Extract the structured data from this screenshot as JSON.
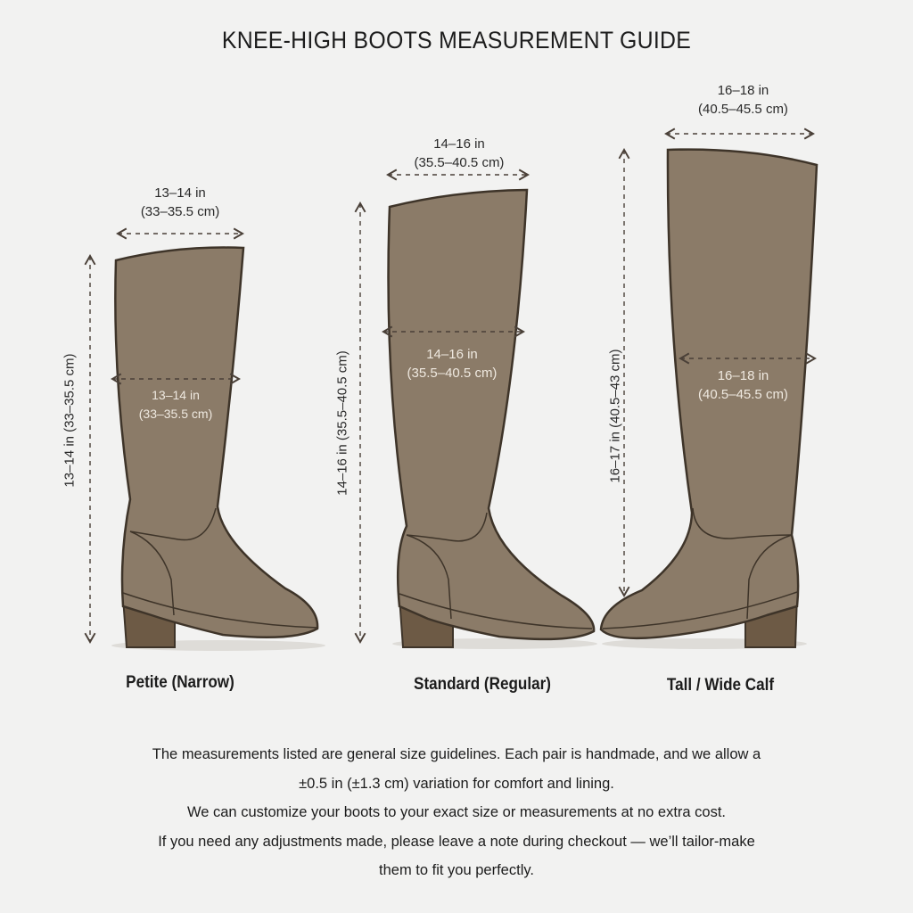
{
  "title": "KNEE-HIGH BOOTS MEASUREMENT GUIDE",
  "boots": [
    {
      "label": "Petite (Narrow)",
      "top_width": [
        "13–14 in",
        "(33–35.5 cm)"
      ],
      "calf_width": [
        "13–14 in",
        "(33–35.5 cm)"
      ],
      "height": "13–14 in (33–35.5 cm)"
    },
    {
      "label": "Standard (Regular)",
      "top_width": [
        "14–16 in",
        "(35.5–40.5 cm)"
      ],
      "calf_width": [
        "14–16 in",
        "(35.5–40.5 cm)"
      ],
      "height": "14–16 in (35.5–40.5 cm)"
    },
    {
      "label": "Tall / Wide Calf",
      "top_width": [
        "16–18 in",
        "(40.5–45.5 cm)"
      ],
      "calf_width": [
        "16–18 in",
        "(40.5–45.5 cm)"
      ],
      "height": "16–17 in (40.5–43 cm)"
    }
  ],
  "note": [
    "The measurements listed are general size guidelines. Each pair is handmade, and we allow a",
    "±0.5 in (±1.3 cm) variation for comfort and lining.",
    "We can customize your boots to your exact size or measurements at no extra cost.",
    "If you need any adjustments made, please leave a note during checkout — we’ll tailor-make",
    "them to fit you perfectly."
  ],
  "colors": {
    "boot": "#8b7b68",
    "outline": "#3e3429",
    "heel": "#6d5a45",
    "dash": "#4a4038"
  }
}
